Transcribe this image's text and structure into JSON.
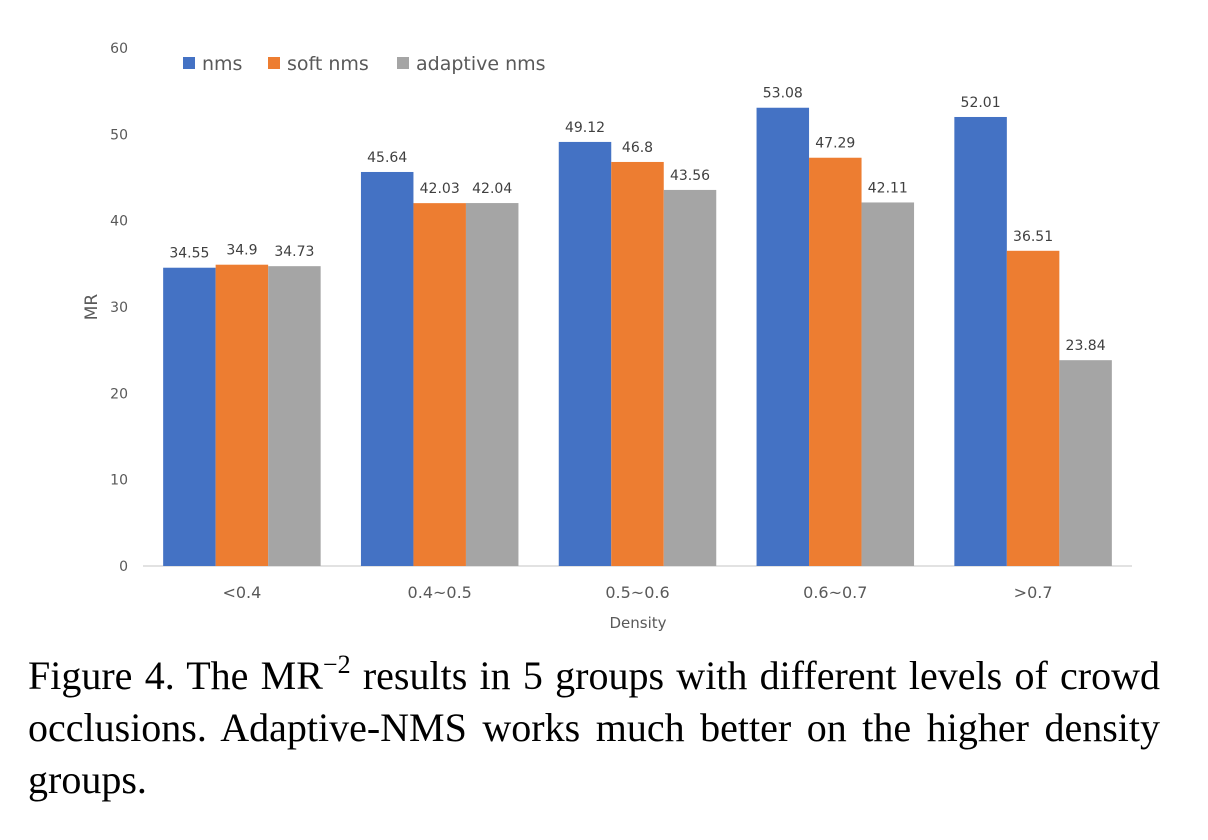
{
  "chart_data": {
    "type": "bar",
    "xlabel": "Density",
    "ylabel": "MR",
    "ylim": [
      0,
      60
    ],
    "yticks": [
      0,
      10,
      20,
      30,
      40,
      50,
      60
    ],
    "grid": false,
    "legend_position": "top-left",
    "categories": [
      "<0.4",
      "0.4~0.5",
      "0.5~0.6",
      "0.6~0.7",
      ">0.7"
    ],
    "series": [
      {
        "name": "nms",
        "color": "#4472C4",
        "values": [
          34.55,
          45.64,
          49.12,
          53.08,
          52.01
        ]
      },
      {
        "name": "soft nms",
        "color": "#ED7D31",
        "values": [
          34.9,
          42.03,
          46.8,
          47.29,
          36.51
        ]
      },
      {
        "name": "adaptive nms",
        "color": "#A5A5A5",
        "values": [
          34.73,
          42.04,
          43.56,
          42.11,
          23.84
        ]
      }
    ]
  },
  "caption": {
    "prefix": "Figure 4. The MR",
    "superscript": "−2",
    "rest": " results in 5 groups with different levels of crowd occlusions.  Adaptive-NMS works much better on the higher density groups."
  }
}
